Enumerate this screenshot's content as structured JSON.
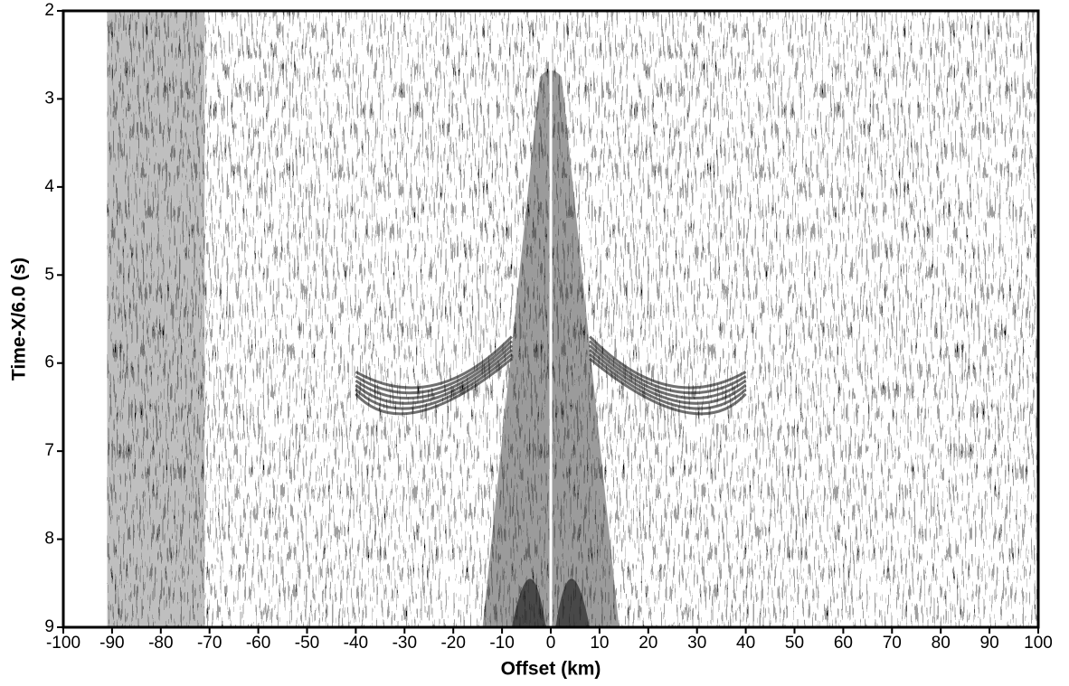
{
  "chart_data": {
    "type": "seismic",
    "xlabel": "Offset (km)",
    "ylabel": "Time-X/6.0 (s)",
    "xlim": [
      -100,
      100
    ],
    "xticks": [
      -100,
      -90,
      -80,
      -70,
      -60,
      -50,
      -40,
      -30,
      -20,
      -10,
      0,
      10,
      20,
      30,
      40,
      50,
      60,
      70,
      80,
      90,
      100
    ],
    "ylim": [
      2,
      9
    ],
    "yticks": [
      2,
      3,
      4,
      5,
      6,
      7,
      8,
      9
    ],
    "y_inverted": true,
    "trace_range": [
      -91,
      100
    ]
  }
}
